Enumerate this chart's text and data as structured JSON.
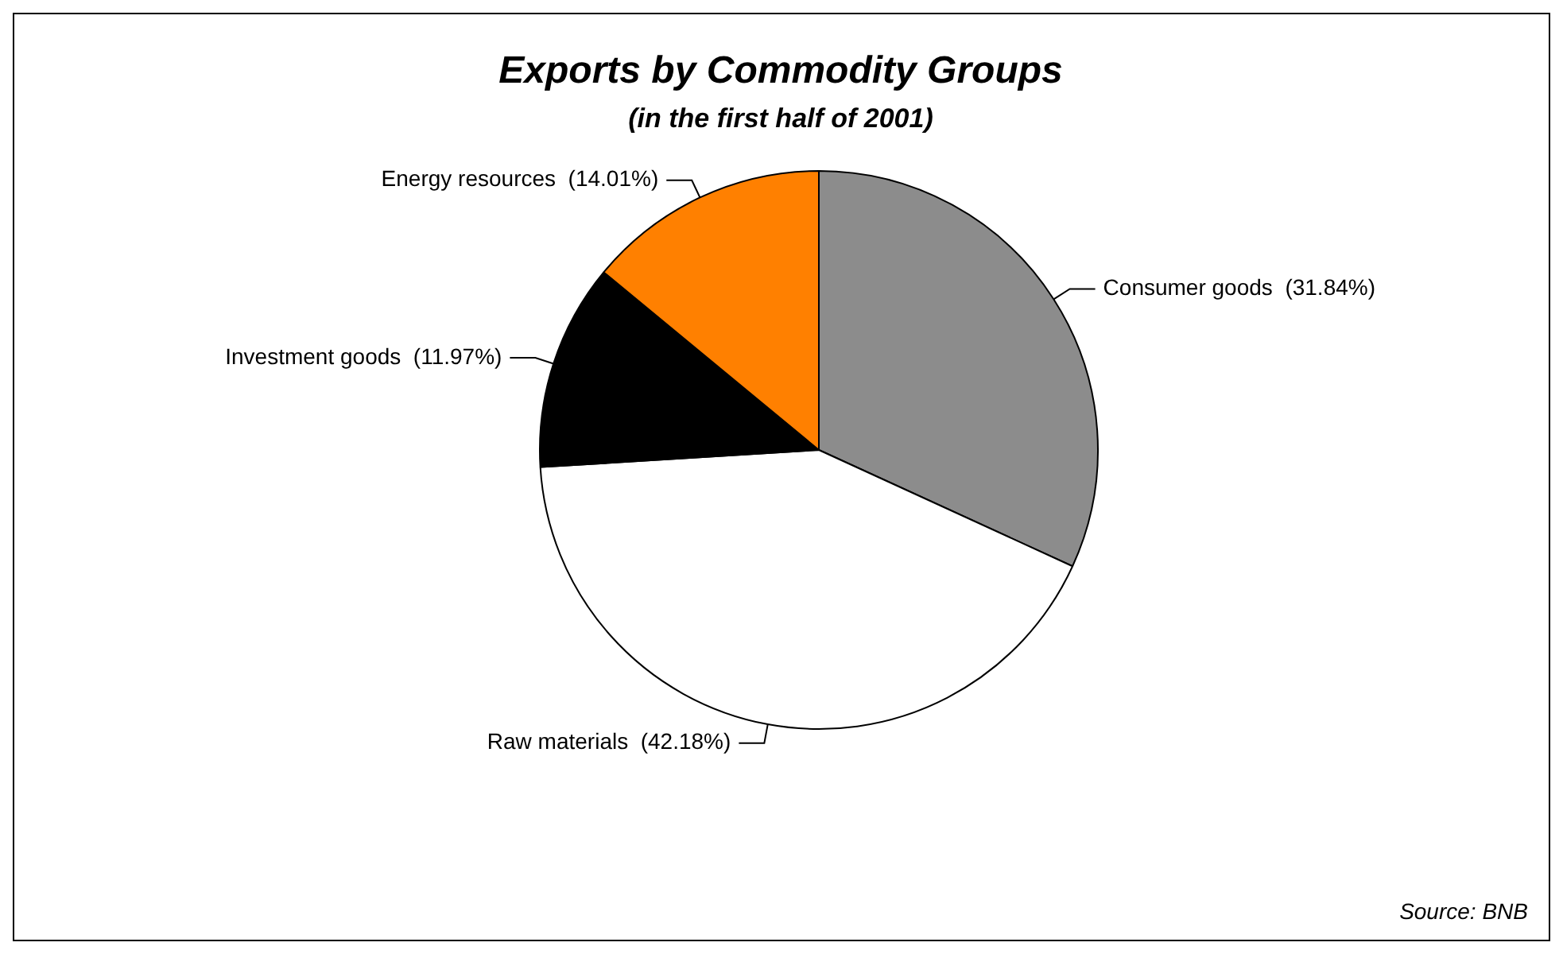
{
  "chart_data": {
    "type": "pie",
    "title": "Exports by Commodity Groups",
    "subtitle": "(in the first half of 2001)",
    "categories": [
      "Consumer goods",
      "Raw materials",
      "Investment goods",
      "Energy resources"
    ],
    "values": [
      31.84,
      42.18,
      11.97,
      14.01
    ],
    "value_labels": [
      "(31.84%)",
      "(42.18%)",
      "(11.97%)",
      "(14.01%)"
    ],
    "colors": [
      "#8c8c8c",
      "#ffffff",
      "#000000",
      "#ff8000"
    ],
    "legend": false,
    "annotations": [
      "Source: BNB"
    ]
  }
}
